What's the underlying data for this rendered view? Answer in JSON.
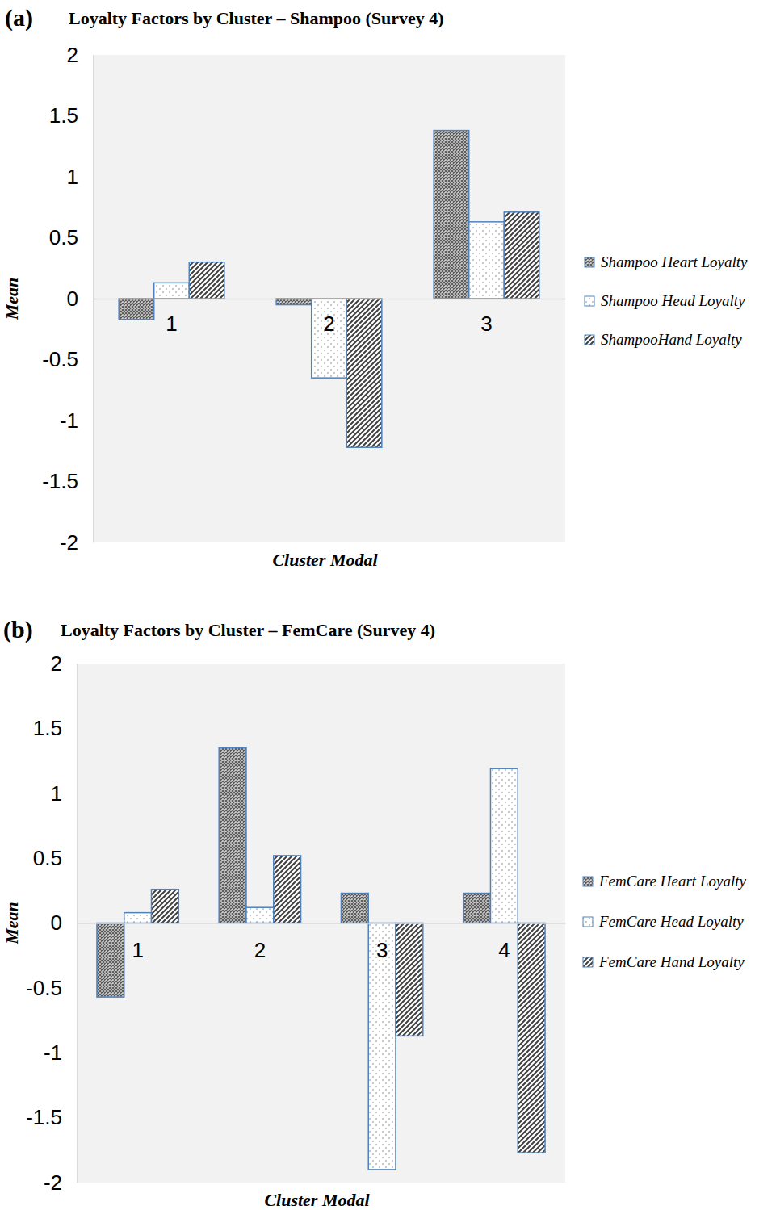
{
  "chart_data": [
    {
      "type": "bar",
      "title": "Loyalty Factors by Cluster – Shampoo (Survey 4)",
      "annotations": [
        "(a)"
      ],
      "x_label": "Cluster Modal",
      "y_label": "Mean",
      "categories": [
        "1",
        "2",
        "3"
      ],
      "series": [
        {
          "name": "Shampoo Heart Loyalty",
          "color": "#595959",
          "values": [
            -0.17,
            -0.05,
            1.38
          ]
        },
        {
          "name": "Shampoo Head Loyalty",
          "color": "#7f7f7f",
          "values": [
            0.13,
            -0.65,
            0.63
          ]
        },
        {
          "name": "ShampooHand Loyalty",
          "color": "#404040",
          "values": [
            0.3,
            -1.22,
            0.71
          ]
        }
      ],
      "ylim": [
        -2,
        2
      ],
      "yticks": [
        -2,
        -1.5,
        -1,
        -0.5,
        0,
        0.5,
        1,
        1.5,
        2
      ],
      "grid": false,
      "legend": "right"
    },
    {
      "type": "bar",
      "title": "Loyalty Factors by Cluster – FemCare (Survey 4)",
      "annotations": [
        "(b)"
      ],
      "x_label": "Cluster Modal",
      "y_label": "Mean",
      "categories": [
        "1",
        "2",
        "3",
        "4"
      ],
      "series": [
        {
          "name": "FemCare Heart Loyalty",
          "color": "#595959",
          "values": [
            -0.57,
            1.35,
            0.23,
            0.23
          ]
        },
        {
          "name": "FemCare Head Loyalty",
          "color": "#7f7f7f",
          "values": [
            0.08,
            0.12,
            -1.9,
            1.19
          ]
        },
        {
          "name": "FemCare Hand Loyalty",
          "color": "#404040",
          "values": [
            0.26,
            0.52,
            -0.87,
            -1.77
          ]
        }
      ],
      "ylim": [
        -2,
        2
      ],
      "yticks": [
        -2,
        -1.5,
        -1,
        -0.5,
        0,
        0.5,
        1,
        1.5,
        2
      ],
      "grid": false,
      "legend": "right"
    }
  ]
}
